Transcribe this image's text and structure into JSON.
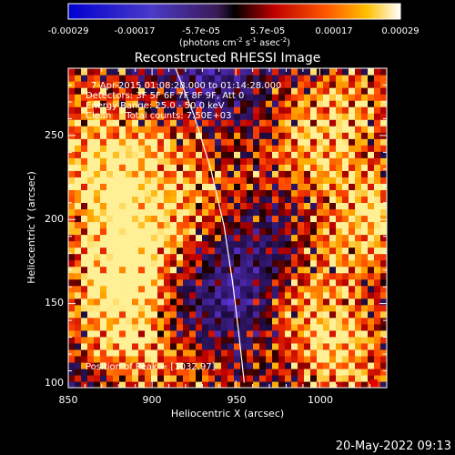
{
  "chart_data": {
    "type": "heatmap",
    "title": "Reconstructed RHESSI Image",
    "xlabel": "Heliocentric X (arcsec)",
    "ylabel": "Heliocentric Y (arcsec)",
    "xlim": [
      850,
      1040
    ],
    "ylim": [
      100,
      290
    ],
    "x_ticks": [
      850,
      900,
      950,
      1000
    ],
    "y_ticks": [
      100,
      150,
      200,
      250
    ],
    "colorbar": {
      "label_parts": [
        "(photons cm",
        "-2",
        " s",
        "-1",
        " asec",
        "-2",
        ")"
      ],
      "ticks": [
        "-0.00029",
        "-0.00017",
        "-5.7e-05",
        "5.7e-05",
        "0.00017",
        "0.00029"
      ],
      "range": [
        -0.00029,
        0.00029
      ]
    },
    "annotations": [
      "7-Apr-2015 01:08:28.000 to 01:14:28.000",
      "Detectors: 3F 5F 6F 7F 8F 9F, Att 0",
      "Energy Range: 25.0 - 50.0 keV",
      "Clean     Total counts: 7.50E+03"
    ],
    "peak_label": "Position of Peak = [1032,97]",
    "peak": [
      1032,
      97
    ],
    "limb": [
      [
        914,
        290
      ],
      [
        925,
        262
      ],
      [
        935,
        230
      ],
      [
        943,
        196
      ],
      [
        948,
        163
      ],
      [
        952,
        130
      ],
      [
        955,
        103
      ]
    ],
    "regions": [
      {
        "x": 872,
        "y": 228,
        "v": 1.0
      },
      {
        "x": 892,
        "y": 192,
        "v": 0.9
      },
      {
        "x": 880,
        "y": 160,
        "v": 0.95
      },
      {
        "x": 885,
        "y": 120,
        "v": 0.85
      },
      {
        "x": 915,
        "y": 250,
        "v": 0.6
      },
      {
        "x": 940,
        "y": 205,
        "v": 0.5
      },
      {
        "x": 1010,
        "y": 120,
        "v": 0.9
      },
      {
        "x": 1030,
        "y": 200,
        "v": 1.0
      },
      {
        "x": 990,
        "y": 160,
        "v": 0.75
      },
      {
        "x": 995,
        "y": 245,
        "v": 0.7
      },
      {
        "x": 1020,
        "y": 270,
        "v": 0.6
      },
      {
        "x": 855,
        "y": 270,
        "v": 0.5
      },
      {
        "x": 930,
        "y": 110,
        "v": 0.35
      },
      {
        "x": 965,
        "y": 180,
        "v": -0.6
      },
      {
        "x": 940,
        "y": 150,
        "v": -0.55
      },
      {
        "x": 930,
        "y": 280,
        "v": -0.6
      },
      {
        "x": 870,
        "y": 100,
        "v": -0.3
      }
    ]
  },
  "footer": {
    "timestamp": "20-May-2022 09:13"
  }
}
